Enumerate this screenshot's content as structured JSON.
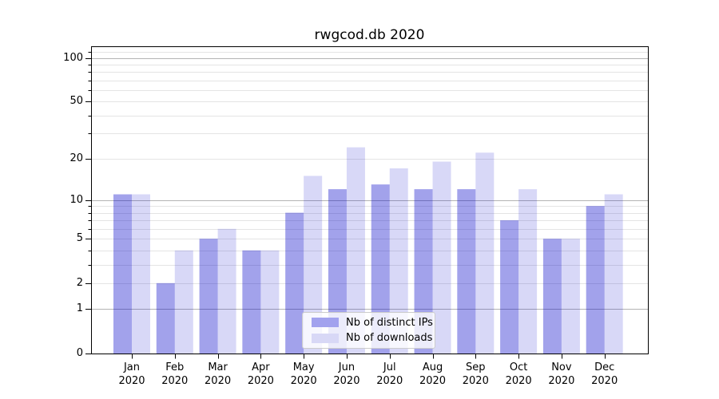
{
  "figure": {
    "title": "rwgcod.db 2020"
  },
  "chart_data": {
    "type": "bar",
    "title": "rwgcod.db 2020",
    "categories": [
      "Jan",
      "Feb",
      "Mar",
      "Apr",
      "May",
      "Jun",
      "Jul",
      "Aug",
      "Sep",
      "Oct",
      "Nov",
      "Dec"
    ],
    "year_label": "2020",
    "series": [
      {
        "name": "Nb of distinct IPs",
        "color": "#a2a2ee",
        "values": [
          11,
          2,
          5,
          4,
          8,
          12,
          13,
          12,
          12,
          7,
          5,
          9
        ]
      },
      {
        "name": "Nb of downloads",
        "color": "#d8d8f6",
        "values": [
          11,
          4,
          6,
          4,
          15,
          24,
          17,
          19,
          22,
          12,
          5,
          11
        ]
      }
    ],
    "xlabel": "",
    "ylabel": "",
    "y_scale": "log1p",
    "ylim": [
      0,
      120
    ],
    "y_ticks_labeled": [
      0,
      1,
      2,
      5,
      10,
      20,
      50,
      100
    ],
    "y_decade_ticks": [
      1,
      10,
      100
    ],
    "y_minor_ticks": [
      2,
      3,
      4,
      5,
      6,
      7,
      8,
      9,
      20,
      30,
      40,
      50,
      60,
      70,
      80,
      90,
      110
    ],
    "grid": true,
    "legend_position": "lower center",
    "colors": {
      "grid_minor": "#e4e4e4",
      "grid_major": "#b4b4b4",
      "axis": "#000000",
      "legend_border": "#cccccc"
    }
  }
}
